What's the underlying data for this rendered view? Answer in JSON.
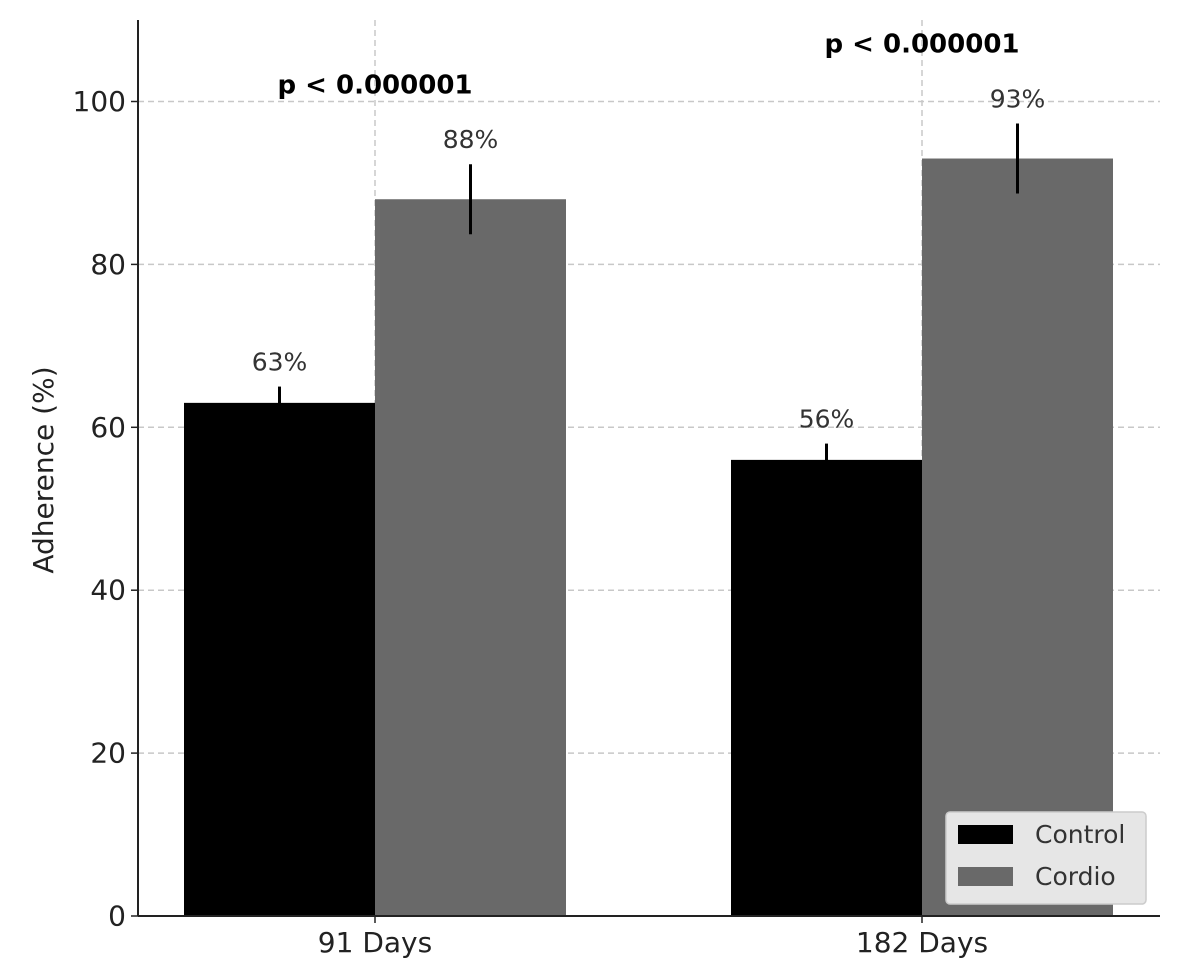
{
  "chart_data": {
    "type": "bar",
    "title": "",
    "xlabel": "",
    "ylabel": "Adherence (%)",
    "ylim": [
      0,
      110
    ],
    "yticks": [
      0,
      20,
      40,
      60,
      80,
      100
    ],
    "ytick_labels": [
      "0",
      "20",
      "40",
      "60",
      "80",
      "100"
    ],
    "grid": true,
    "categories": [
      "91 Days",
      "182 Days"
    ],
    "series": [
      {
        "name": "Control",
        "color": "#000000",
        "values": [
          63,
          56
        ],
        "errors": [
          2,
          2
        ],
        "labels": [
          "63%",
          "56%"
        ]
      },
      {
        "name": "Cordio",
        "color": "#696969",
        "values": [
          88,
          93
        ],
        "errors": [
          4.3,
          4.3
        ],
        "labels": [
          "88%",
          "93%"
        ]
      }
    ],
    "annotations": [
      {
        "category": "91 Days",
        "text": "p < 0.000001",
        "y": 101
      },
      {
        "category": "182 Days",
        "text": "p < 0.000001",
        "y": 106
      }
    ],
    "legend": {
      "position": "bottom-right",
      "entries": [
        "Control",
        "Cordio"
      ]
    }
  }
}
